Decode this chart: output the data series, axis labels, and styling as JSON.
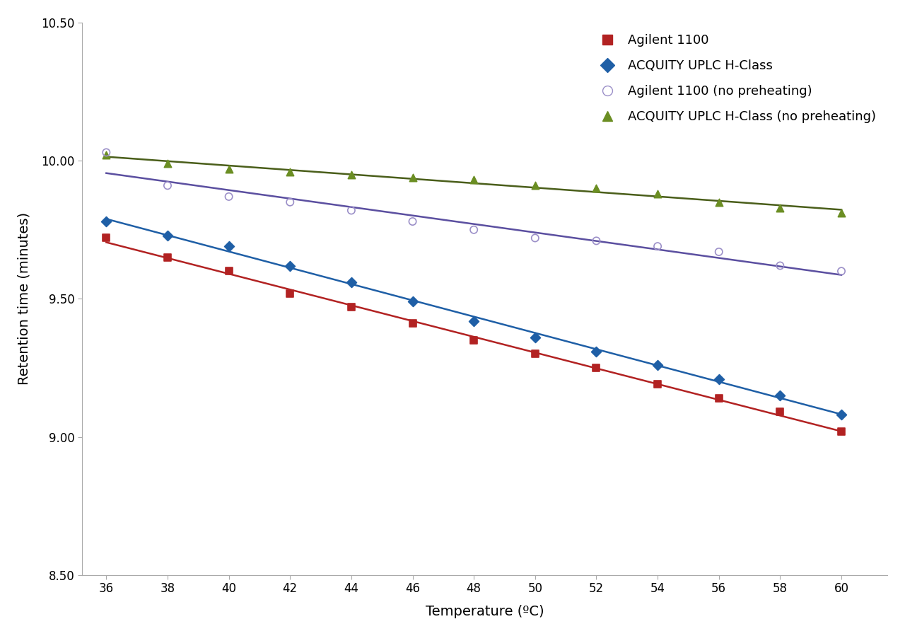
{
  "temperature": [
    36,
    38,
    40,
    42,
    44,
    46,
    48,
    50,
    52,
    54,
    56,
    58,
    60
  ],
  "agilent_1100": [
    9.72,
    9.65,
    9.6,
    9.52,
    9.47,
    9.41,
    9.35,
    9.3,
    9.25,
    9.19,
    9.14,
    9.09,
    9.02
  ],
  "acquity_uplc": [
    9.78,
    9.73,
    9.69,
    9.62,
    9.56,
    9.49,
    9.42,
    9.36,
    9.31,
    9.26,
    9.21,
    9.15,
    9.08
  ],
  "agilent_1100_nopreheat": [
    10.03,
    9.91,
    9.87,
    9.85,
    9.82,
    9.78,
    9.75,
    9.72,
    9.71,
    9.69,
    9.67,
    9.62,
    9.6
  ],
  "acquity_uplc_nopreheat": [
    10.02,
    9.99,
    9.97,
    9.96,
    9.95,
    9.94,
    9.93,
    9.91,
    9.9,
    9.88,
    9.85,
    9.83,
    9.81
  ],
  "agilent_1100_color": "#b22222",
  "acquity_uplc_color": "#1f5fa6",
  "agilent_1100_nopreheat_color": "#9b8fc8",
  "acquity_uplc_nopreheat_color": "#6b8e23",
  "agilent_1100_line_color": "#b22222",
  "acquity_uplc_line_color": "#1f5fa6",
  "agilent_1100_nopreheat_line_color": "#5b4fa0",
  "acquity_uplc_nopreheat_line_color": "#4a5e1a",
  "xlabel": "Temperature (ºC)",
  "ylabel": "Retention time (minutes)",
  "ylim": [
    8.5,
    10.5
  ],
  "xlim": [
    35.2,
    61.5
  ],
  "legend_labels": [
    "Agilent 1100",
    "ACQUITY UPLC H-Class",
    "Agilent 1100 (no preheating)",
    "ACQUITY UPLC H-Class (no preheating)"
  ],
  "yticks": [
    8.5,
    9.0,
    9.5,
    10.0,
    10.5
  ],
  "xticks": [
    36,
    38,
    40,
    42,
    44,
    46,
    48,
    50,
    52,
    54,
    56,
    58,
    60
  ],
  "background_color": "#ffffff"
}
